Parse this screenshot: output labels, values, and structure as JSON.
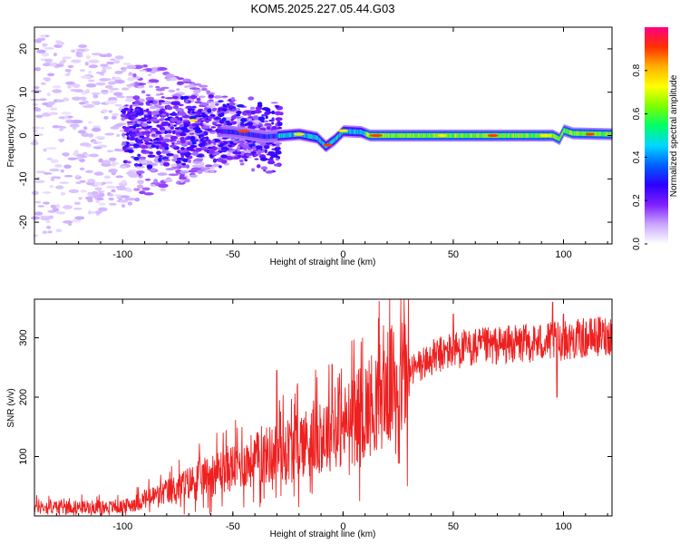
{
  "title": "KOM5.2025.227.05.44.G03",
  "chart_data": [
    {
      "type": "heatmap",
      "name": "spectrogram",
      "xlabel": "Height of straight line (km)",
      "ylabel": "Frequency (Hz)",
      "xlim": [
        -140,
        122
      ],
      "ylim": [
        -25,
        25
      ],
      "xticks": [
        -100,
        -50,
        0,
        50,
        100
      ],
      "yticks": [
        -20,
        -10,
        0,
        10,
        20
      ],
      "colorbar": {
        "label": "Normalized spectral amplitude",
        "range": [
          0,
          1
        ],
        "ticks": [
          "0.0",
          "0.2",
          "0.4",
          "0.6",
          "0.8"
        ],
        "colors": [
          "#ffffff",
          "#c9a6ff",
          "#7e1fff",
          "#2a00ff",
          "#0060ff",
          "#00d8ff",
          "#00ff66",
          "#7fff00",
          "#ffff00",
          "#ffb000",
          "#ff3000",
          "#ff0080"
        ]
      },
      "ridge": [
        {
          "x": -140,
          "f": 0.0
        },
        {
          "x": -70,
          "f": 1.5
        },
        {
          "x": -50,
          "f": 0.8
        },
        {
          "x": -35,
          "f": -0.3
        },
        {
          "x": -20,
          "f": 0.3
        },
        {
          "x": -12,
          "f": -0.5
        },
        {
          "x": -8,
          "f": -2.5
        },
        {
          "x": -4,
          "f": -1.0
        },
        {
          "x": 0,
          "f": 1.0
        },
        {
          "x": 8,
          "f": 0.8
        },
        {
          "x": 12,
          "f": 0.0
        },
        {
          "x": 95,
          "f": 0.0
        },
        {
          "x": 98,
          "f": -0.8
        },
        {
          "x": 100,
          "f": 1.2
        },
        {
          "x": 104,
          "f": 0.5
        },
        {
          "x": 122,
          "f": 0.3
        }
      ],
      "band_halfwidth_hz": 1.2
    },
    {
      "type": "line",
      "name": "snr",
      "xlabel": "Height of straight line (km)",
      "ylabel": "SNR (v/v)",
      "xlim": [
        -140,
        122
      ],
      "ylim": [
        0,
        365
      ],
      "xticks": [
        -100,
        -50,
        0,
        50,
        100
      ],
      "yticks": [
        100,
        200,
        300
      ],
      "color": "#ee2020",
      "trend": [
        {
          "x": -140,
          "y": 15
        },
        {
          "x": -100,
          "y": 15
        },
        {
          "x": -80,
          "y": 40
        },
        {
          "x": -60,
          "y": 70
        },
        {
          "x": -40,
          "y": 95
        },
        {
          "x": -20,
          "y": 120
        },
        {
          "x": 0,
          "y": 150
        },
        {
          "x": 10,
          "y": 180
        },
        {
          "x": 25,
          "y": 230
        },
        {
          "x": 40,
          "y": 265
        },
        {
          "x": 50,
          "y": 280
        },
        {
          "x": 80,
          "y": 290
        },
        {
          "x": 100,
          "y": 295
        },
        {
          "x": 122,
          "y": 305
        }
      ],
      "spikes": [
        {
          "x": -30,
          "y": 245
        },
        {
          "x": -5,
          "y": 255
        },
        {
          "x": 50,
          "y": 340
        },
        {
          "x": 95,
          "y": 360
        },
        {
          "x": 97,
          "y": 200
        },
        {
          "x": 100,
          "y": 340
        }
      ]
    }
  ]
}
